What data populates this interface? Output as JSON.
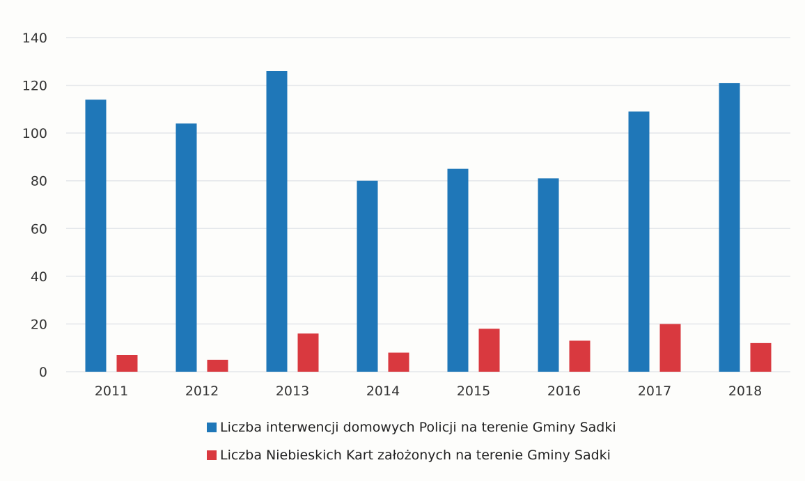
{
  "chart_data": {
    "type": "bar",
    "title": "",
    "xlabel": "",
    "ylabel": "",
    "categories": [
      "2011",
      "2012",
      "2013",
      "2014",
      "2015",
      "2016",
      "2017",
      "2018"
    ],
    "series": [
      {
        "name": "Liczba interwencji domowych Policji na terenie Gminy Sadki",
        "color": "#1f77b8",
        "values": [
          114,
          104,
          126,
          80,
          85,
          81,
          109,
          121
        ]
      },
      {
        "name": "Liczba Niebieskich Kart założonych na terenie Gminy Sadki",
        "color": "#d9393f",
        "values": [
          7,
          5,
          16,
          8,
          18,
          13,
          20,
          12
        ]
      }
    ],
    "ylim": [
      0,
      140
    ],
    "yticks": [
      0,
      20,
      40,
      60,
      80,
      100,
      120,
      140
    ],
    "grid": true,
    "legend_position": "bottom"
  }
}
